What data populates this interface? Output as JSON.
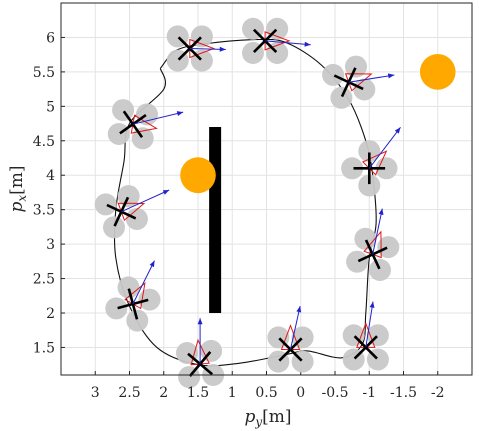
{
  "chart_data": {
    "type": "scatter",
    "title": "",
    "xlabel_main": "p",
    "xlabel_sub": "y",
    "xlabel_unit": "[m]",
    "ylabel_main": "p",
    "ylabel_sub": "x",
    "ylabel_unit": "[m]",
    "xlim": [
      -2.5,
      3.5
    ],
    "x_reversed": true,
    "ylim": [
      1.1,
      6.5
    ],
    "grid": true,
    "x_ticks": [
      3,
      2.5,
      2,
      1.5,
      1,
      0.5,
      0,
      -0.5,
      -1,
      -1.5,
      -2
    ],
    "x_tick_labels": [
      "3",
      "2.5",
      "2",
      "1.5",
      "1",
      "0.5",
      "0",
      "-0.5",
      "-1",
      "-1.5",
      "-2"
    ],
    "y_ticks": [
      1.5,
      2,
      2.5,
      3,
      3.5,
      4,
      4.5,
      5,
      5.5,
      6
    ],
    "y_tick_labels": [
      "1.5",
      "2",
      "2.5",
      "3",
      "3.5",
      "4",
      "4.5",
      "5",
      "5.5",
      "6"
    ],
    "trajectory": [
      [
        2.05,
        5.55
      ],
      [
        1.8,
        5.82
      ],
      [
        1.3,
        5.92
      ],
      [
        0.6,
        5.97
      ],
      [
        0.2,
        5.92
      ],
      [
        -0.3,
        5.6
      ],
      [
        -0.7,
        5.1
      ],
      [
        -0.95,
        4.5
      ],
      [
        -1.05,
        4.0
      ],
      [
        -1.1,
        3.3
      ],
      [
        -1.0,
        2.8
      ],
      [
        -0.95,
        2.0
      ],
      [
        -0.9,
        1.55
      ],
      [
        -0.6,
        1.35
      ],
      [
        -0.1,
        1.45
      ],
      [
        0.2,
        1.4
      ],
      [
        0.9,
        1.27
      ],
      [
        1.5,
        1.25
      ],
      [
        2.1,
        1.5
      ],
      [
        2.5,
        2.1
      ],
      [
        2.7,
        2.8
      ],
      [
        2.7,
        3.5
      ],
      [
        2.58,
        4.2
      ],
      [
        2.5,
        4.75
      ],
      [
        2.0,
        5.25
      ],
      [
        2.05,
        5.55
      ]
    ],
    "drones": [
      {
        "x": 1.62,
        "y": 5.84,
        "yaw": 0,
        "vx": -0.75,
        "vy": -0.02
      },
      {
        "x": 0.52,
        "y": 5.95,
        "yaw": 0,
        "vx": -0.95,
        "vy": -0.08
      },
      {
        "x": -0.7,
        "y": 5.35,
        "yaw": 20,
        "vx": -0.95,
        "vy": 0.15
      },
      {
        "x": -1.0,
        "y": 4.1,
        "yaw": 45,
        "vx": -0.65,
        "vy": 0.85
      },
      {
        "x": -1.05,
        "y": 2.85,
        "yaw": 70,
        "vx": -0.2,
        "vy": 0.95
      },
      {
        "x": -0.95,
        "y": 1.5,
        "yaw": 90,
        "vx": -0.15,
        "vy": 0.95
      },
      {
        "x": 0.15,
        "y": 1.47,
        "yaw": 90,
        "vx": -0.2,
        "vy": 0.9
      },
      {
        "x": 1.47,
        "y": 1.26,
        "yaw": 95,
        "vx": 0.0,
        "vy": 0.95
      },
      {
        "x": 2.45,
        "y": 2.13,
        "yaw": 60,
        "vx": -0.45,
        "vy": 0.9
      },
      {
        "x": 2.62,
        "y": 3.47,
        "yaw": 20,
        "vx": -1.0,
        "vy": 0.45
      },
      {
        "x": 2.45,
        "y": 4.74,
        "yaw": -10,
        "vx": -1.05,
        "vy": 0.25
      }
    ],
    "obstacles": [
      {
        "x": 1.5,
        "y": 4.0,
        "r": 0.26
      },
      {
        "x": -2.0,
        "y": 5.5,
        "r": 0.26
      }
    ],
    "wall": {
      "x": 1.25,
      "y_from": 2.0,
      "y_to": 4.7
    },
    "colors": {
      "trajectory": "#111111",
      "velocity": "#2222cc",
      "heading": "#e01818",
      "rotor": "#c8c8c8",
      "arm": "#000000",
      "obstacle": "#ffa800",
      "wall": "#000000",
      "grid": "#e3e3e3"
    }
  }
}
